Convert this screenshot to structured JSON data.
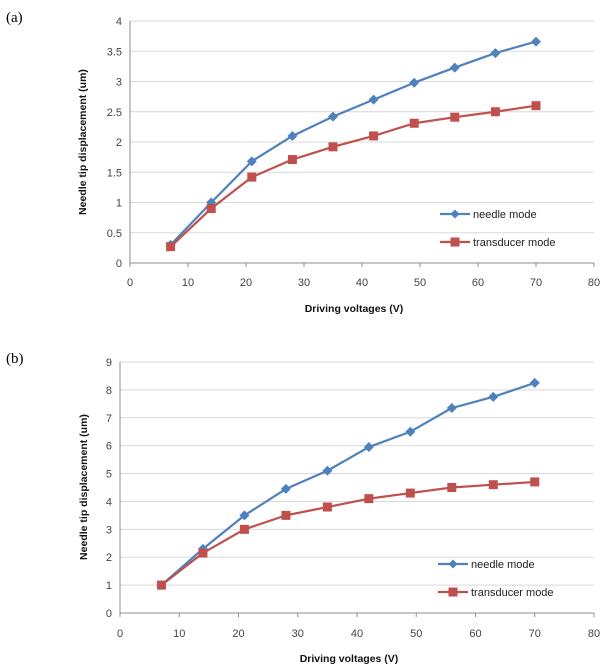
{
  "figure": {
    "panels": [
      "(a)",
      "(b)"
    ]
  },
  "chart_data": [
    {
      "type": "line",
      "panel_label": "(a)",
      "xlabel": "Driving voltages (V)",
      "ylabel": "Needle tip displacement (um)",
      "xlim": [
        0,
        80
      ],
      "ylim": [
        0,
        4
      ],
      "xticks": [
        0,
        10,
        20,
        30,
        40,
        50,
        60,
        70,
        80
      ],
      "yticks": [
        0,
        0.5,
        1,
        1.5,
        2,
        2.5,
        3,
        3.5,
        4
      ],
      "grid": "horizontal",
      "legend_position": "bottom-right",
      "x": [
        7,
        14,
        21,
        28,
        35,
        42,
        49,
        56,
        63,
        70
      ],
      "series": [
        {
          "name": "needle mode",
          "color": "#4F81BD",
          "marker": "diamond",
          "values": [
            0.3,
            1.0,
            1.68,
            2.1,
            2.42,
            2.7,
            2.98,
            3.23,
            3.47,
            3.66
          ]
        },
        {
          "name": "transducer mode",
          "color": "#C0504D",
          "marker": "square",
          "values": [
            0.27,
            0.9,
            1.42,
            1.71,
            1.92,
            2.1,
            2.31,
            2.41,
            2.5,
            2.6
          ]
        }
      ]
    },
    {
      "type": "line",
      "panel_label": "(b)",
      "xlabel": "Driving voltages (V)",
      "ylabel": "Needle tip displacement (um)",
      "xlim": [
        0,
        80
      ],
      "ylim": [
        0,
        9
      ],
      "xticks": [
        0,
        10,
        20,
        30,
        40,
        50,
        60,
        70,
        80
      ],
      "yticks": [
        0,
        1,
        2,
        3,
        4,
        5,
        6,
        7,
        8,
        9
      ],
      "grid": "horizontal",
      "legend_position": "bottom-right",
      "x": [
        7,
        14,
        21,
        28,
        35,
        42,
        49,
        56,
        63,
        70
      ],
      "series": [
        {
          "name": "needle mode",
          "color": "#4F81BD",
          "marker": "diamond",
          "values": [
            1.0,
            2.3,
            3.5,
            4.45,
            5.1,
            5.95,
            6.5,
            7.35,
            7.75,
            8.25
          ]
        },
        {
          "name": "transducer mode",
          "color": "#C0504D",
          "marker": "square",
          "values": [
            1.0,
            2.15,
            3.0,
            3.5,
            3.8,
            4.1,
            4.3,
            4.5,
            4.6,
            4.7
          ]
        }
      ]
    }
  ]
}
